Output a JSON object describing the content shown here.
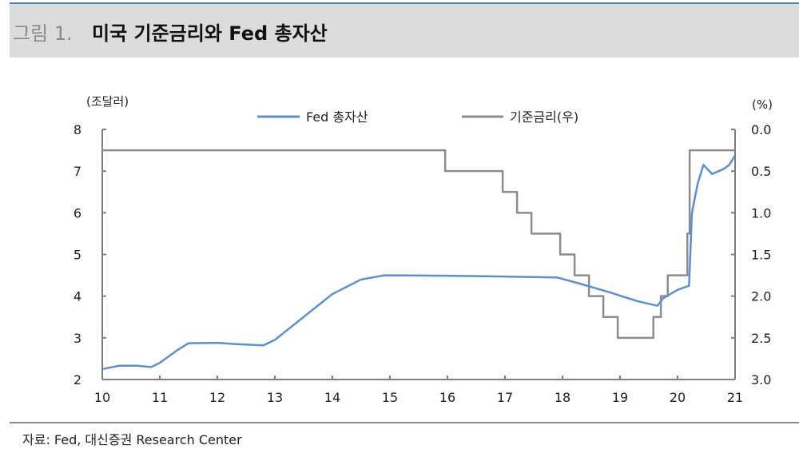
{
  "header": {
    "figure_label": "그림 1.",
    "title": "미국 기준금리와 Fed 총자산"
  },
  "source": "자료: Fed, 대신증권 Research Center",
  "chart_data": {
    "type": "line",
    "title": "미국 기준금리와 Fed 총자산",
    "xlabel": "",
    "x_ticks": [
      "10",
      "11",
      "12",
      "13",
      "14",
      "15",
      "16",
      "17",
      "18",
      "19",
      "20",
      "21"
    ],
    "xlim": [
      10,
      21
    ],
    "left_axis": {
      "unit_label": "(조달러)",
      "ylim": [
        2,
        8
      ],
      "ticks": [
        "2",
        "3",
        "4",
        "5",
        "6",
        "7",
        "8"
      ]
    },
    "right_axis": {
      "unit_label": "(%)",
      "ylim": [
        0.0,
        3.0
      ],
      "inverted": true,
      "ticks": [
        "0.0",
        "0.5",
        "1.0",
        "1.5",
        "2.0",
        "2.5",
        "3.0"
      ]
    },
    "legend_position": "top-center",
    "series": [
      {
        "name": "Fed 총자산",
        "axis": "left",
        "color": "#5b8fd0",
        "step": false,
        "points": [
          [
            10.0,
            2.25
          ],
          [
            10.3,
            2.33
          ],
          [
            10.6,
            2.33
          ],
          [
            10.85,
            2.3
          ],
          [
            11.0,
            2.4
          ],
          [
            11.3,
            2.7
          ],
          [
            11.5,
            2.87
          ],
          [
            12.0,
            2.88
          ],
          [
            12.3,
            2.85
          ],
          [
            12.8,
            2.82
          ],
          [
            13.0,
            2.95
          ],
          [
            13.5,
            3.5
          ],
          [
            14.0,
            4.05
          ],
          [
            14.5,
            4.4
          ],
          [
            14.9,
            4.5
          ],
          [
            16.0,
            4.49
          ],
          [
            17.0,
            4.47
          ],
          [
            17.9,
            4.45
          ],
          [
            18.3,
            4.3
          ],
          [
            18.8,
            4.1
          ],
          [
            19.3,
            3.88
          ],
          [
            19.65,
            3.77
          ],
          [
            19.75,
            3.95
          ],
          [
            20.0,
            4.15
          ],
          [
            20.2,
            4.25
          ],
          [
            20.25,
            6.0
          ],
          [
            20.35,
            6.7
          ],
          [
            20.45,
            7.15
          ],
          [
            20.6,
            6.93
          ],
          [
            20.8,
            7.05
          ],
          [
            20.9,
            7.15
          ],
          [
            21.0,
            7.38
          ]
        ]
      },
      {
        "name": "기준금리(우)",
        "axis": "right",
        "color": "#8c8c8c",
        "step": true,
        "points": [
          [
            10.0,
            0.25
          ],
          [
            15.96,
            0.5
          ],
          [
            16.96,
            0.75
          ],
          [
            17.21,
            1.0
          ],
          [
            17.46,
            1.25
          ],
          [
            17.96,
            1.5
          ],
          [
            18.21,
            1.75
          ],
          [
            18.46,
            2.0
          ],
          [
            18.71,
            2.25
          ],
          [
            18.96,
            2.5
          ],
          [
            19.58,
            2.25
          ],
          [
            19.71,
            2.0
          ],
          [
            19.83,
            1.75
          ],
          [
            20.17,
            1.25
          ],
          [
            20.21,
            0.25
          ],
          [
            21.0,
            0.25
          ]
        ]
      }
    ]
  }
}
